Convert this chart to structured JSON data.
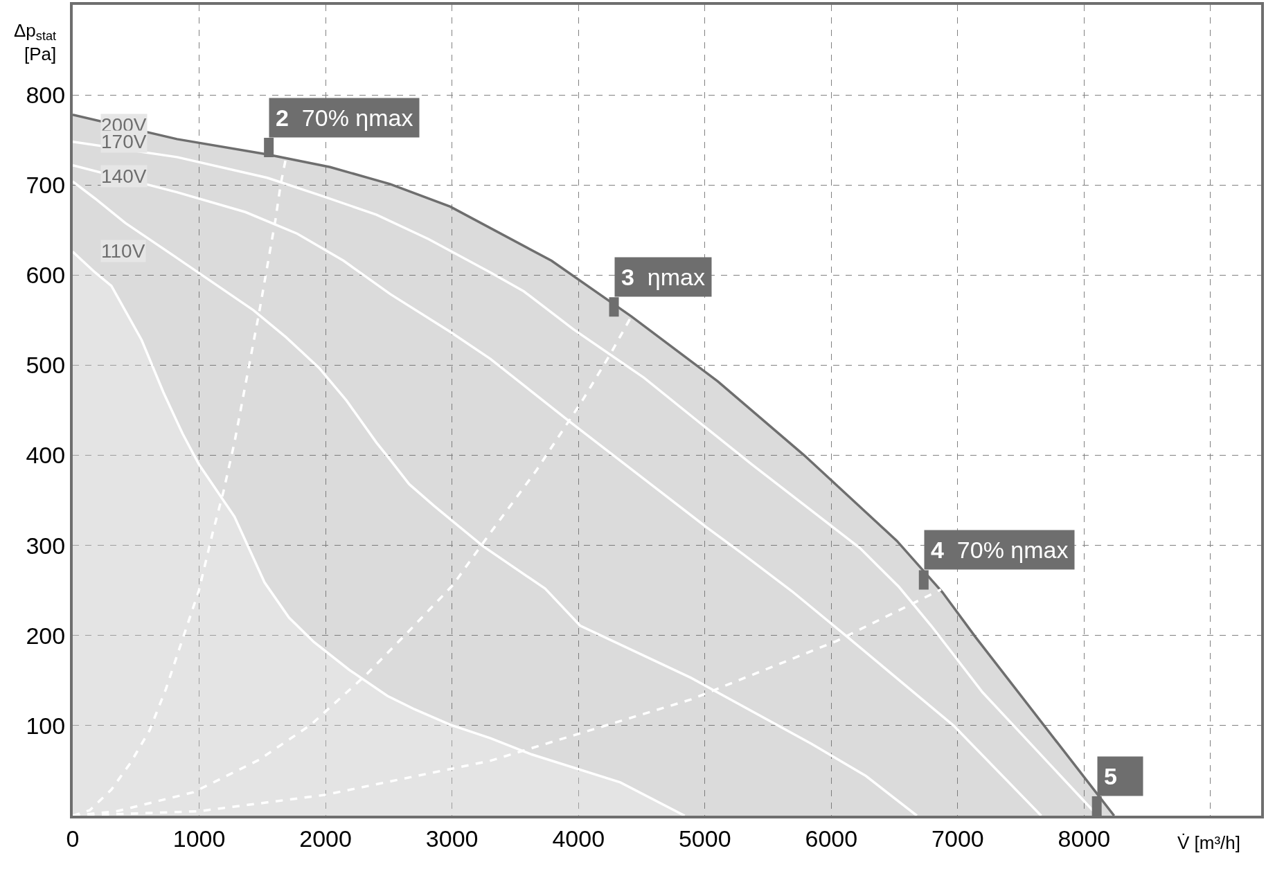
{
  "chart_data": {
    "type": "line",
    "xlabel": "V̇ [m³/h]",
    "ylabel": "Δp$_{stat}$\n[Pa]",
    "xlim": [
      0,
      9400
    ],
    "ylim": [
      0,
      900
    ],
    "xticks": [
      0,
      1000,
      2000,
      3000,
      4000,
      5000,
      6000,
      7000,
      8000,
      {
        "value": 9000,
        "label": null
      }
    ],
    "yticks": [
      100,
      200,
      300,
      400,
      500,
      600,
      700,
      800
    ],
    "grid": true,
    "series": [
      {
        "type": "area",
        "color": "#6e6e6e",
        "x": [
          0,
          825,
          1539,
          2035,
          2511,
          2986,
          3787,
          4420,
          5103,
          5786,
          6519,
          6879,
          7142,
          8065,
          8237
        ],
        "values": [
          778,
          751,
          734,
          720,
          701,
          676,
          616,
          554,
          482,
          400,
          305,
          248,
          198,
          31,
          0
        ]
      },
      {
        "type": "area",
        "color": "#ffffff",
        "x": [
          0,
          177,
          306,
          545,
          717,
          869,
          998,
          1279,
          1517,
          1710,
          1906,
          2186,
          2489,
          2705,
          2986,
          3304,
          3630,
          4331,
          4840
        ],
        "values": [
          626,
          603,
          588,
          528,
          470,
          424,
          390,
          332,
          259,
          220,
          193,
          162,
          133,
          118,
          101,
          86,
          68,
          37,
          0
        ]
      },
      {
        "color": "#ffffff",
        "x": [
          0,
          177,
          415,
          825,
          1430,
          1688,
          1949,
          2164,
          2403,
          2489,
          2661,
          2857,
          3246,
          3737,
          4013,
          4890,
          5841,
          6275,
          6677
        ],
        "values": [
          704,
          685,
          658,
          619,
          561,
          531,
          497,
          461,
          414,
          399,
          368,
          344,
          299,
          252,
          211,
          153,
          80,
          44,
          0
        ]
      },
      {
        "color": "#ffffff",
        "x": [
          0,
          825,
          1366,
          1776,
          2142,
          2511,
          2986,
          3304,
          3934,
          4470,
          5005,
          5295,
          5690,
          6131,
          6967,
          7660
        ],
        "values": [
          722,
          692,
          670,
          646,
          616,
          579,
          537,
          507,
          437,
          379,
          321,
          291,
          249,
          198,
          100,
          0
        ]
      },
      {
        "color": "#ffffff",
        "x": [
          0,
          825,
          1539,
          1970,
          2403,
          2814,
          3304,
          3568,
          3959,
          4519,
          5005,
          5371,
          6227,
          6535,
          6795,
          7196,
          8107
        ],
        "values": [
          748,
          731,
          708,
          688,
          667,
          640,
          603,
          582,
          540,
          486,
          431,
          390,
          297,
          254,
          210,
          137,
          0
        ]
      },
      {
        "color": "#ffffff",
        "line_style": "dashed",
        "x": [
          0,
          134,
          306,
          459,
          609,
          738,
          869,
          998,
          1107,
          1191,
          1279,
          1474,
          1603,
          1645,
          1688
        ],
        "values": [
          0,
          6,
          29,
          59,
          95,
          141,
          196,
          250,
          314,
          359,
          414,
          558,
          661,
          701,
          731
        ]
      },
      {
        "color": "#ffffff",
        "line_style": "dashed",
        "x": [
          0,
          350,
          955,
          1474,
          1884,
          2318,
          2639,
          3007,
          3288,
          3666,
          4032,
          4251,
          4418
        ],
        "values": [
          0,
          5,
          26,
          62,
          101,
          156,
          202,
          256,
          311,
          383,
          461,
          512,
          554
        ]
      },
      {
        "color": "#ffffff",
        "line_style": "dashed",
        "x": [
          0,
          1000,
          1992,
          3304,
          4890,
          6043,
          6868
        ],
        "values": [
          0,
          5,
          23,
          61,
          129,
          194,
          251
        ]
      }
    ],
    "annotations": [
      {
        "text": "200V",
        "x": 0,
        "y": 767
      },
      {
        "text": "170V",
        "x": 0,
        "y": 748
      },
      {
        "text": "140V",
        "x": 0,
        "y": 710
      },
      {
        "text": "110V",
        "x": 0,
        "y": 627
      },
      {
        "text": "2 70% ηmax",
        "x": 1688,
        "y": 731
      },
      {
        "text": "3 ηmax",
        "x": 4418,
        "y": 554
      },
      {
        "text": "4 70% ηmax",
        "x": 6868,
        "y": 251
      },
      {
        "text": "5",
        "x": 8237,
        "y": 0
      }
    ]
  }
}
